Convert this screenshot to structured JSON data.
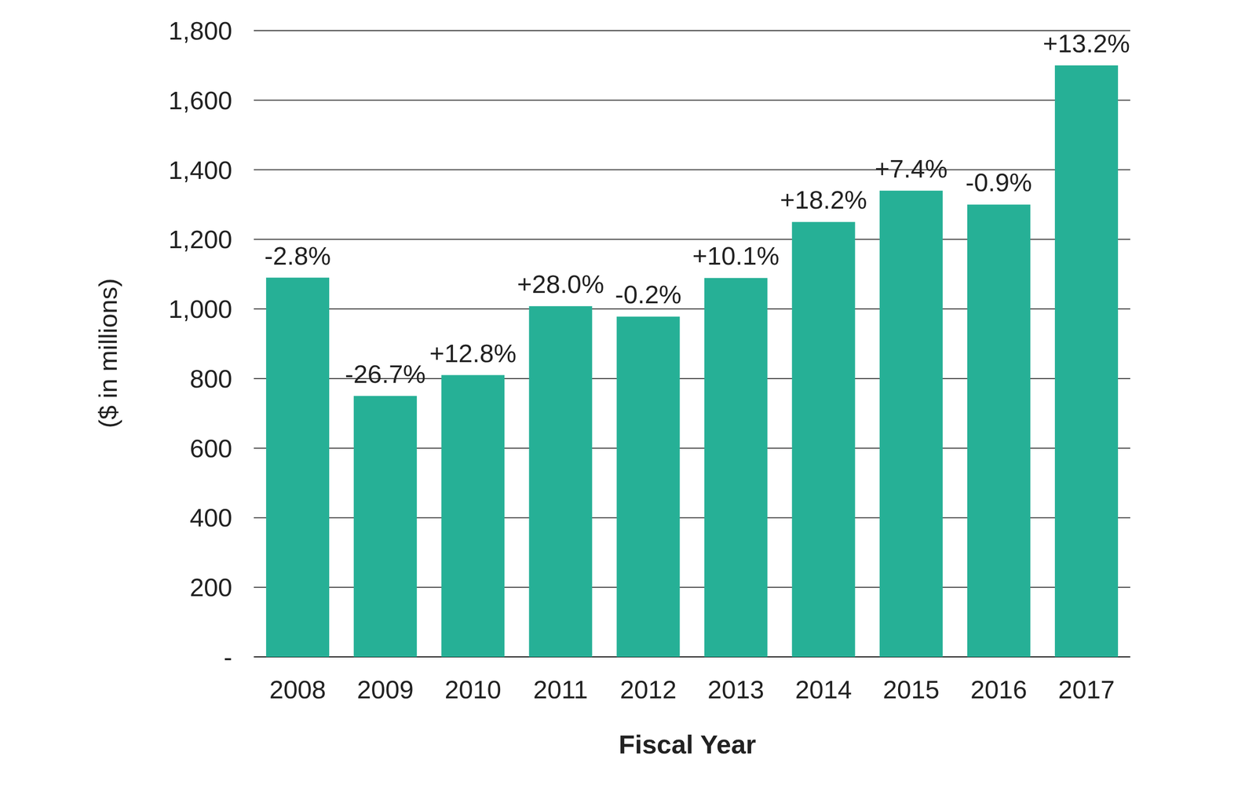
{
  "chart_data": {
    "type": "bar",
    "x_label": "Fiscal Year",
    "y_label": "($ in millions)",
    "categories": [
      "2008",
      "2009",
      "2010",
      "2011",
      "2012",
      "2013",
      "2014",
      "2015",
      "2016",
      "2017"
    ],
    "values": [
      1090,
      750,
      810,
      1008,
      978,
      1089,
      1250,
      1340,
      1300,
      1700
    ],
    "annotations": [
      "-2.8%",
      "-26.7%",
      "+12.8%",
      "+28.0%",
      "-0.2%",
      "+10.1%",
      "+18.2%",
      "+7.4%",
      "-0.9%",
      "+13.2%"
    ],
    "color": "#26b096",
    "ylim": [
      0,
      1800
    ],
    "yticks": [
      {
        "value": 0,
        "label": "-"
      },
      200,
      400,
      600,
      800,
      {
        "value": 1000,
        "label": "1,000"
      },
      {
        "value": 1200,
        "label": "1,200"
      },
      {
        "value": 1400,
        "label": "1,400"
      },
      {
        "value": 1600,
        "label": "1,600"
      },
      {
        "value": 1800,
        "label": "1,800"
      }
    ],
    "grid": true
  }
}
